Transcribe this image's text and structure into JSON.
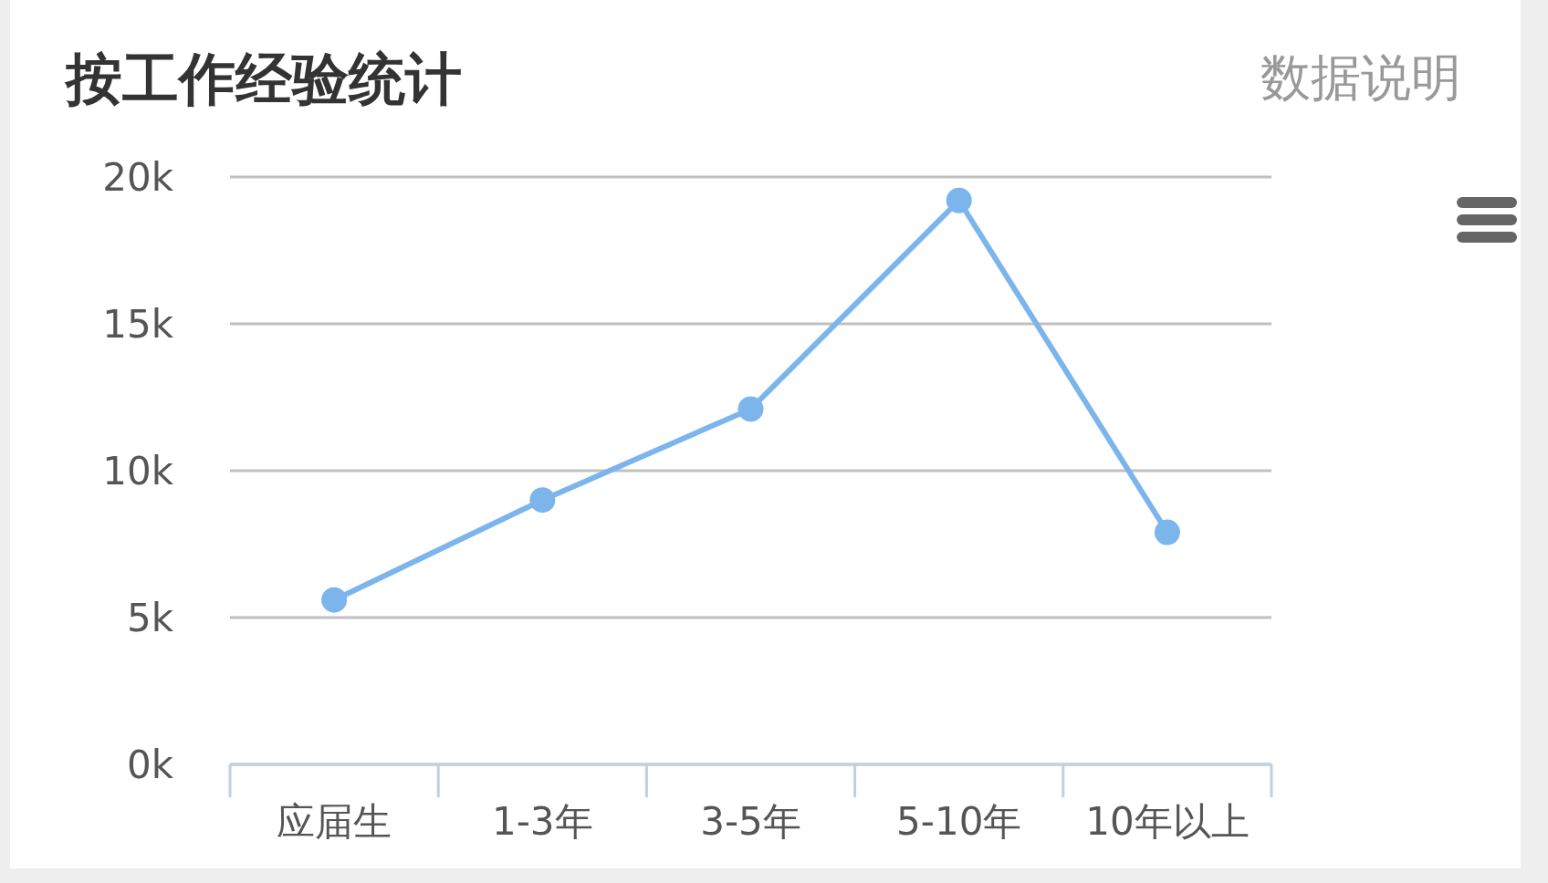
{
  "chart_data": {
    "type": "line",
    "title": "按工作经验统计",
    "annotations": [
      "数据说明"
    ],
    "categories": [
      "应届生",
      "1-3年",
      "3-5年",
      "5-10年",
      "10年以上"
    ],
    "series": [
      {
        "color": "#7cb5ec",
        "values": [
          5600,
          9000,
          12100,
          19200,
          7900
        ]
      }
    ],
    "ylim": [
      0,
      20000
    ],
    "yticks": [
      {
        "value": 0,
        "label": "0k"
      },
      {
        "value": 5000,
        "label": "5k"
      },
      {
        "value": 10000,
        "label": "10k"
      },
      {
        "value": 15000,
        "label": "15k"
      },
      {
        "value": 20000,
        "label": "20k"
      }
    ],
    "grid": "y",
    "marker": "circle"
  }
}
